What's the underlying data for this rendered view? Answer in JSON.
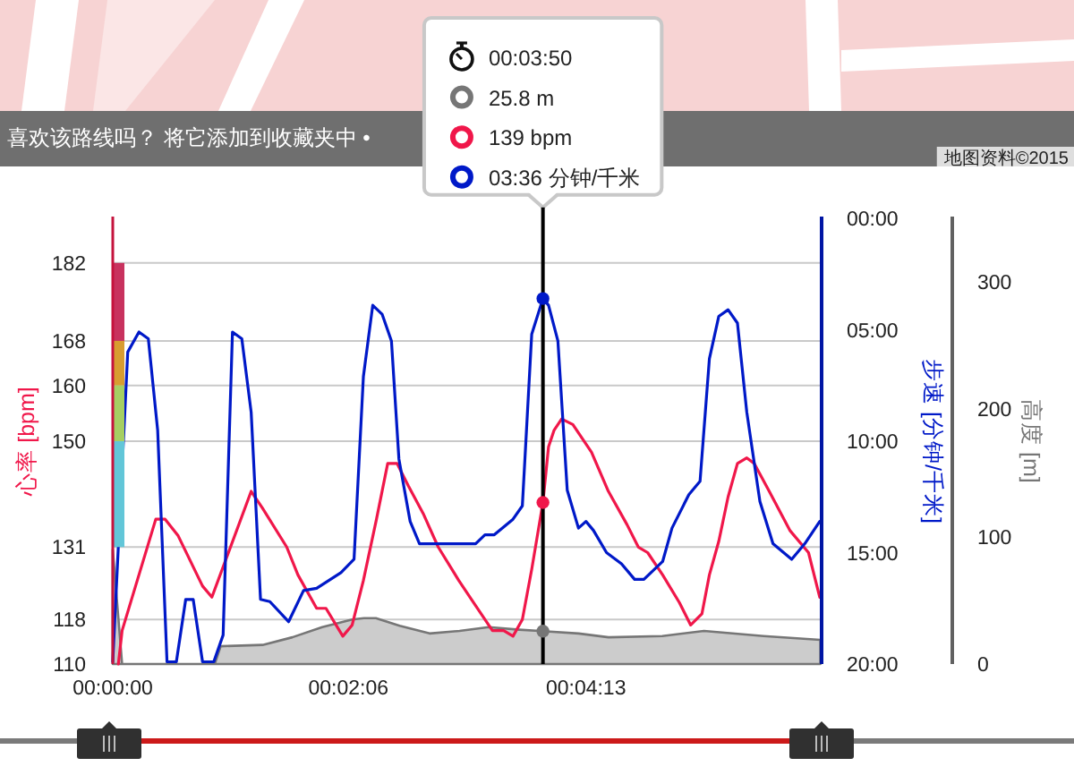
{
  "chart_data": {
    "type": "line",
    "ylabel": "心率 [bpm]",
    "y2label": "步速 [分钟/千米]",
    "y3label": "高度 [m]",
    "xlim": [
      0,
      379
    ],
    "xticks": [
      {
        "value": 0,
        "label": "00:00:00"
      },
      {
        "value": 126,
        "label": "00:02:06"
      },
      {
        "value": 253,
        "label": "00:04:13"
      }
    ],
    "ylim": [
      110,
      190
    ],
    "yticks": [
      110,
      118,
      131,
      150,
      160,
      168,
      182
    ],
    "y2lim": [
      20,
      0
    ],
    "y2ticks": [
      {
        "value": 0,
        "label": "00:00"
      },
      {
        "value": 5,
        "label": "05:00"
      },
      {
        "value": 10,
        "label": "10:00"
      },
      {
        "value": 15,
        "label": "15:00"
      },
      {
        "value": 20,
        "label": "20:00"
      }
    ],
    "y3lim": [
      0,
      350
    ],
    "y3ticks": [
      0,
      100,
      200,
      300
    ],
    "grid": "y",
    "series": [
      {
        "type": "area",
        "axis": "y3",
        "color": "#cccccc",
        "x": [
          0,
          5,
          54.5,
          57.7,
          80.1,
          96,
          112,
          128,
          134.3,
          140.7,
          153.4,
          169.4,
          185.4,
          201,
          217.2,
          230,
          249.1,
          265.1,
          293.8,
          316.1,
          348,
          378.3
        ],
        "values": [
          90,
          0,
          0,
          14,
          15,
          21,
          29,
          35,
          36,
          36,
          30,
          24,
          26,
          29,
          27,
          25.8,
          24,
          21,
          22,
          26,
          22,
          19
        ]
      },
      {
        "type": "line",
        "axis": "y",
        "color": "#f0174a",
        "x": [
          3,
          5,
          23,
          28,
          35,
          48,
          53,
          74,
          80,
          93,
          99,
          109,
          114,
          123,
          128,
          134,
          141,
          147,
          152,
          158,
          166,
          174,
          185,
          193,
          203,
          209,
          214,
          219,
          224,
          230,
          233,
          236,
          240,
          246,
          256,
          265,
          275,
          281,
          286,
          294,
          303,
          309,
          315,
          319,
          324,
          329,
          334,
          339,
          343,
          351,
          362,
          372,
          378
        ],
        "values": [
          110,
          116,
          136,
          136,
          133,
          124,
          122,
          141,
          138,
          131,
          126,
          120,
          120,
          115,
          117,
          125,
          136,
          146,
          146,
          142,
          137,
          131,
          125,
          121,
          116,
          116,
          115,
          118,
          127,
          139,
          149,
          152,
          154,
          153,
          148,
          141,
          135,
          131,
          130,
          126,
          121,
          117,
          119,
          126,
          132,
          140,
          146,
          147,
          146,
          141,
          134,
          130,
          122
        ]
      },
      {
        "type": "line",
        "axis": "y2",
        "color": "#0019c8",
        "x": [
          0,
          8,
          14,
          19,
          24,
          29,
          34,
          39,
          43,
          48,
          54,
          59,
          64,
          69,
          74,
          79,
          84,
          94,
          102,
          109,
          122,
          129,
          134,
          139,
          144,
          149,
          153,
          159,
          164,
          194,
          199,
          204,
          214,
          219,
          224,
          230,
          233,
          238,
          243,
          249,
          253,
          257,
          264,
          272,
          279,
          284,
          294,
          299,
          308,
          314,
          319,
          324,
          329,
          334,
          339,
          346,
          353,
          363,
          370,
          378
        ],
        "values": [
          19.9,
          6,
          5.1,
          5.4,
          9.5,
          19.9,
          19.9,
          17.1,
          17.1,
          19.9,
          19.9,
          18.7,
          5.1,
          5.4,
          8.7,
          17.1,
          17.2,
          18.1,
          16.7,
          16.6,
          15.9,
          15.3,
          7.1,
          3.9,
          4.3,
          5.5,
          10.8,
          13.6,
          14.6,
          14.6,
          14.2,
          14.2,
          13.5,
          12.9,
          5.2,
          3.6,
          3.9,
          5.5,
          12.2,
          13.9,
          13.6,
          14,
          15,
          15.5,
          16.2,
          16.2,
          15.4,
          13.9,
          12.4,
          11.8,
          6.3,
          4.4,
          4.1,
          4.7,
          8.7,
          12.7,
          14.6,
          15.3,
          14.6,
          13.6
        ]
      }
    ],
    "ref_lines": [
      {
        "axis": "x",
        "value": 230,
        "color": "#000000"
      }
    ],
    "annotations": [
      "喜欢该路线吗？ 将它添加到收藏夹中 •",
      "地图资料©2015",
      "00:03:50",
      "25.8 m",
      "139 bpm",
      "03:36 分钟/千米"
    ]
  }
}
